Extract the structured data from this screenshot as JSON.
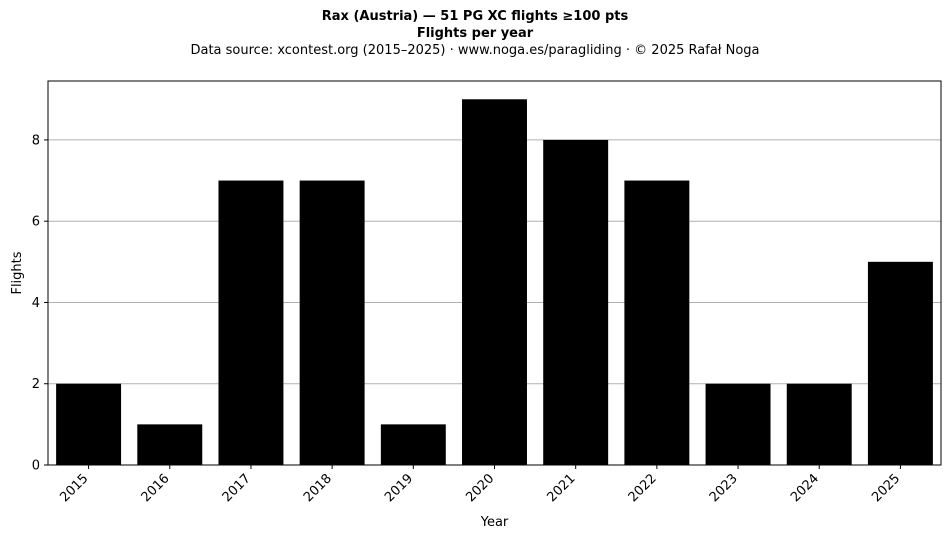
{
  "chart_data": {
    "type": "bar",
    "title": "Rax (Austria)  —  51 PG XC flights ≥100 pts",
    "subtitle": "Flights per year",
    "source": "Data source: xcontest.org (2015–2025)  ·  www.noga.es/paragliding  ·  © 2025 Rafał Noga",
    "categories": [
      "2015",
      "2016",
      "2017",
      "2018",
      "2019",
      "2020",
      "2021",
      "2022",
      "2023",
      "2024",
      "2025"
    ],
    "values": [
      2,
      1,
      7,
      7,
      1,
      9,
      8,
      7,
      2,
      2,
      5
    ],
    "xlabel": "Year",
    "ylabel": "Flights",
    "ylim": [
      0,
      9.45
    ],
    "yticks": [
      0,
      2,
      4,
      6,
      8
    ],
    "grid": "horizontal",
    "bar_color": "#000000",
    "grid_color": "#b0b0b0"
  }
}
